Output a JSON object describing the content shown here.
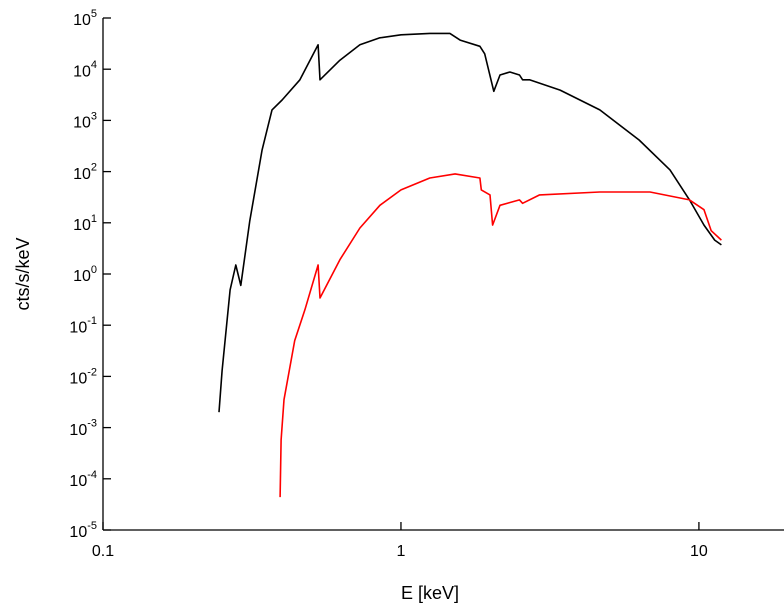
{
  "chart_data": {
    "type": "line",
    "xlabel": "E [keV]",
    "ylabel": "cts/s/keV",
    "xscale": "log",
    "yscale": "log",
    "xlim": [
      0.1,
      19.3
    ],
    "ylim": [
      1e-05,
      100000
    ],
    "xticks": [
      0.1,
      1,
      10
    ],
    "yticks": [
      {
        "value": 1e-05,
        "label": "10^-5"
      },
      {
        "value": 0.0001,
        "label": "10^-4"
      },
      {
        "value": 0.001,
        "label": "10^-3"
      },
      {
        "value": 0.01,
        "label": "10^-2"
      },
      {
        "value": 0.1,
        "label": "10^-1"
      },
      {
        "value": 1,
        "label": "10^0"
      },
      {
        "value": 10,
        "label": "10^1"
      },
      {
        "value": 100,
        "label": "10^2"
      },
      {
        "value": 1000,
        "label": "10^3"
      },
      {
        "value": 10000,
        "label": "10^4"
      },
      {
        "value": 100000,
        "label": "10^5"
      }
    ],
    "series": [
      {
        "color": "#000000",
        "x": [
          0.245,
          0.251,
          0.267,
          0.279,
          0.29,
          0.311,
          0.342,
          0.369,
          0.399,
          0.458,
          0.527,
          0.535,
          0.624,
          0.728,
          0.85,
          1,
          1.25,
          1.46,
          1.58,
          1.84,
          1.91,
          2.05,
          2.15,
          2.32,
          2.5,
          2.56,
          2.7,
          3.42,
          4.65,
          6.3,
          8.0,
          9.3,
          10.4,
          11.3,
          11.9
        ],
        "values": [
          0.002,
          0.013,
          0.49,
          1.5,
          0.6,
          11,
          265,
          1600,
          2500,
          6200,
          30000,
          6200,
          15000,
          30000,
          41000,
          47000,
          50000,
          50000,
          37000,
          28000,
          20000,
          3700,
          7700,
          8800,
          7700,
          6200,
          6200,
          3900,
          1600,
          415,
          108,
          28,
          9,
          4.6,
          3.7
        ]
      },
      {
        "color": "#ff0000",
        "x": [
          0.393,
          0.396,
          0.405,
          0.44,
          0.476,
          0.527,
          0.535,
          0.624,
          0.728,
          0.85,
          1,
          1.25,
          1.52,
          1.84,
          1.86,
          1.99,
          2.03,
          2.15,
          2.5,
          2.56,
          2.92,
          4.65,
          6.85,
          9.3,
          10.4,
          11,
          11.9
        ],
        "values": [
          4.4e-05,
          0.00057,
          0.0035,
          0.05,
          0.2,
          1.5,
          0.34,
          1.9,
          7.9,
          22,
          44,
          75,
          90,
          75,
          44,
          35,
          9,
          22,
          28,
          24,
          35,
          40,
          40,
          28,
          18,
          7,
          4.6
        ]
      }
    ]
  }
}
